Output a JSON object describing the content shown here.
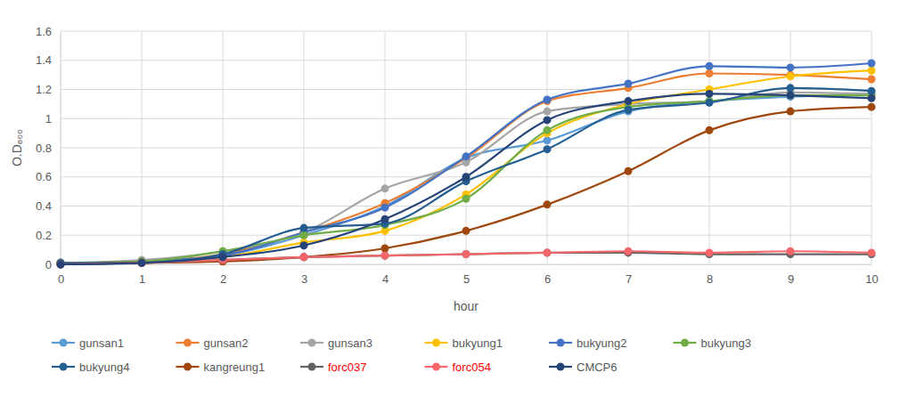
{
  "chart_data": {
    "type": "line",
    "x_label": "hour",
    "y_label": "O.D₆₀₀",
    "x": [
      0,
      1,
      2,
      3,
      4,
      5,
      6,
      7,
      8,
      9,
      10
    ],
    "xlim": [
      0,
      10
    ],
    "xticks": [
      0,
      1,
      2,
      3,
      4,
      5,
      6,
      7,
      8,
      9,
      10
    ],
    "ylim": [
      0,
      1.6
    ],
    "yticks": [
      0,
      0.2,
      0.4,
      0.6,
      0.8,
      1,
      1.2,
      1.4,
      1.6
    ],
    "grid": true,
    "legend": "bottom",
    "marker": "circle",
    "series": [
      {
        "name": "gunsan1",
        "color": "#5b9bd5",
        "values": [
          0.01,
          0.02,
          0.06,
          0.2,
          0.4,
          0.73,
          0.85,
          1.05,
          1.12,
          1.15,
          1.17
        ]
      },
      {
        "name": "gunsan2",
        "color": "#ed7d31",
        "values": [
          0.01,
          0.02,
          0.07,
          0.22,
          0.42,
          0.73,
          1.12,
          1.21,
          1.31,
          1.3,
          1.27
        ]
      },
      {
        "name": "gunsan3",
        "color": "#a5a5a5",
        "values": [
          0.01,
          0.03,
          0.09,
          0.22,
          0.52,
          0.7,
          1.05,
          1.1,
          1.12,
          1.18,
          1.17
        ]
      },
      {
        "name": "bukyung1",
        "color": "#ffc000",
        "values": [
          0.01,
          0.02,
          0.05,
          0.15,
          0.23,
          0.48,
          0.9,
          1.1,
          1.2,
          1.29,
          1.33
        ]
      },
      {
        "name": "bukyung2",
        "color": "#4472c4",
        "values": [
          0.01,
          0.02,
          0.06,
          0.22,
          0.39,
          0.74,
          1.13,
          1.24,
          1.36,
          1.35,
          1.38
        ]
      },
      {
        "name": "bukyung3",
        "color": "#70ad47",
        "values": [
          0.01,
          0.02,
          0.09,
          0.2,
          0.27,
          0.45,
          0.92,
          1.08,
          1.12,
          1.16,
          1.16
        ]
      },
      {
        "name": "bukyung4",
        "color": "#255e91",
        "values": [
          0.01,
          0.01,
          0.07,
          0.25,
          0.28,
          0.57,
          0.79,
          1.06,
          1.11,
          1.21,
          1.19
        ]
      },
      {
        "name": "kangreung1",
        "color": "#9e480e",
        "values": [
          0.0,
          0.01,
          0.02,
          0.05,
          0.11,
          0.23,
          0.41,
          0.64,
          0.92,
          1.05,
          1.08
        ]
      },
      {
        "name": "forc037",
        "color": "#636363",
        "values": [
          0.0,
          0.01,
          0.03,
          0.05,
          0.06,
          0.07,
          0.08,
          0.08,
          0.07,
          0.07,
          0.07
        ]
      },
      {
        "name": "forc054",
        "color": "#f4666a",
        "values": [
          0.0,
          0.01,
          0.03,
          0.05,
          0.06,
          0.07,
          0.08,
          0.09,
          0.08,
          0.09,
          0.08
        ]
      },
      {
        "name": "CMCP6",
        "color": "#264478",
        "values": [
          0.0,
          0.01,
          0.05,
          0.13,
          0.31,
          0.6,
          0.99,
          1.12,
          1.17,
          1.16,
          1.14
        ]
      }
    ]
  }
}
